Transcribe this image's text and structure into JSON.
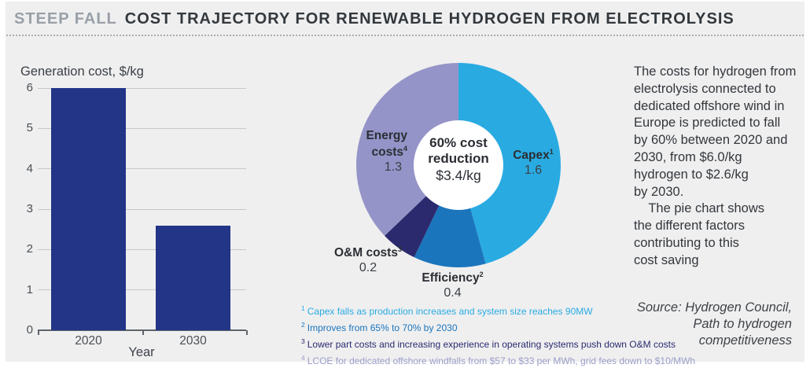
{
  "header": {
    "kicker": "STEEP FALL",
    "title": "COST TRAJECTORY FOR RENEWABLE HYDROGEN FROM ELECTROLYSIS"
  },
  "chart_data": [
    {
      "type": "bar",
      "title": "Generation cost, $/kg",
      "xlabel": "Year",
      "ylabel": "",
      "categories": [
        "2020",
        "2030"
      ],
      "values": [
        6.0,
        2.6
      ],
      "ylim": [
        0,
        6
      ],
      "yticks": [
        0,
        1,
        2,
        3,
        4,
        5,
        6
      ],
      "grid": true,
      "bar_color": "#233587"
    },
    {
      "type": "pie",
      "subtype": "donut",
      "direction": "clockwise",
      "start_angle": "12-o'clock",
      "center_label": "60% cost reduction",
      "center_value": "$3.4/kg",
      "segments": [
        {
          "label": "Capex",
          "footnote_ref": "1",
          "value": 1.6,
          "color": "#29abe2"
        },
        {
          "label": "Efficiency",
          "footnote_ref": "2",
          "value": 0.4,
          "color": "#1b75bc"
        },
        {
          "label": "O&M costs",
          "footnote_ref": "3",
          "value": 0.2,
          "color": "#2b2a6e"
        },
        {
          "label": "Energy costs",
          "footnote_ref": "4",
          "value": 1.3,
          "color": "#9494c8"
        }
      ]
    }
  ],
  "footnotes": [
    {
      "ref": "1",
      "text": "Capex falls as production increases and system size reaches 90MW",
      "color": "#29abe2"
    },
    {
      "ref": "2",
      "text": "Improves from 65% to 70% by 2030",
      "color": "#1b75bc"
    },
    {
      "ref": "3",
      "text": "Lower part costs and increasing experience in operating systems push down O&M costs",
      "color": "#2b2a6e"
    },
    {
      "ref": "4",
      "text": "LCOE for dedicated offshore windfalls from $57 to $33 per MWh, grid fees down to $10/MWh",
      "color": "#9b9dc7"
    }
  ],
  "commentary": {
    "text": "The costs for hydrogen from\nelectrolysis connected to\ndedicated offshore wind in\nEurope is predicted to fall\nby 60% between 2020 and\n2030, from $6.0/kg\nhydrogen to $2.6/kg\nby 2030.\n    The pie chart shows\nthe different factors\ncontributing to this\ncost saving"
  },
  "source": {
    "text": "Source: Hydrogen Council,\nPath to hydrogen\ncompetitiveness"
  },
  "colors": {
    "background": "#efeff0",
    "kicker": "#99a0a7",
    "title_text": "#33383c",
    "bar": "#233587",
    "gridline": "#c8c8c8",
    "axis": "#5f646a",
    "text_dark": "#3a3f44"
  }
}
